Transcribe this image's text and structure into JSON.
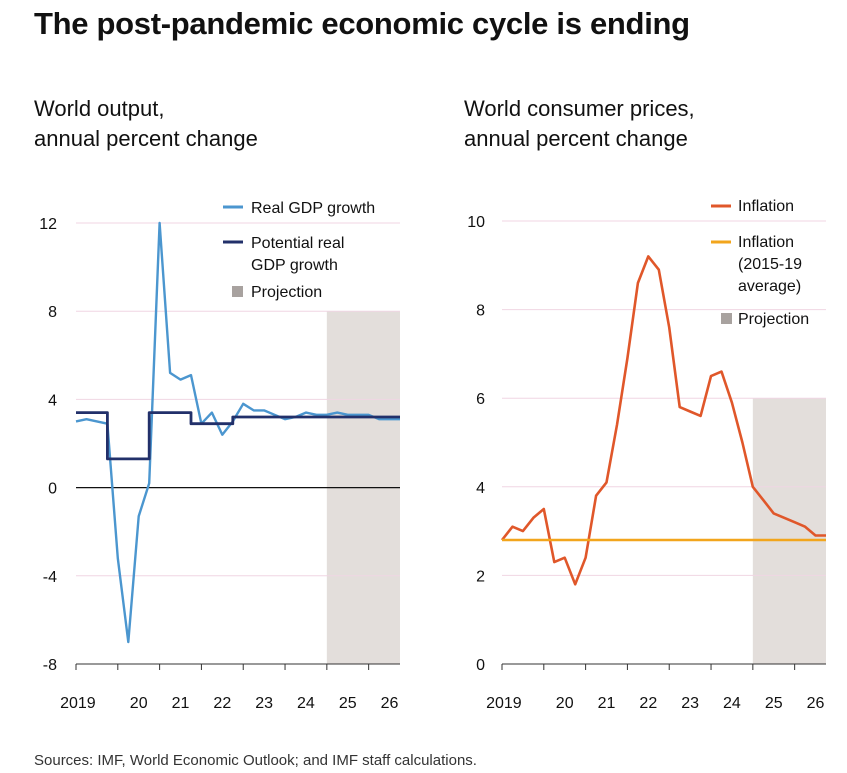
{
  "title": "The post-pandemic economic cycle is ending",
  "source": "Sources: IMF, World Economic Outlook; and IMF staff calculations.",
  "colors": {
    "gdp": "#4b96cf",
    "potential": "#22306a",
    "inflation": "#e0572a",
    "inflation_avg": "#f2a51c",
    "projection": "#e3dedb",
    "grid": "#f0d6e3",
    "zero": "#111111"
  },
  "chart_data": [
    {
      "type": "line",
      "title_lines": [
        "World output,",
        "annual percent change"
      ],
      "xlabel": "",
      "ylabel": "",
      "x_ticks": [
        "2019",
        "20",
        "21",
        "22",
        "23",
        "24",
        "25",
        "26"
      ],
      "x_range": [
        2019.0,
        2026.75
      ],
      "ylim": [
        -8,
        12
      ],
      "y_ticks": [
        "12",
        "8",
        "4",
        "0",
        "-4",
        "-8"
      ],
      "y_tick_values": [
        12,
        8,
        4,
        0,
        -4,
        -8
      ],
      "projection_start": 2025.0,
      "legend": [
        "Real GDP growth",
        "Potential real",
        "GDP growth",
        "Projection"
      ],
      "series": [
        {
          "name": "Real GDP growth",
          "x": [
            2019.0,
            2019.25,
            2019.5,
            2019.75,
            2020.0,
            2020.25,
            2020.5,
            2020.75,
            2021.0,
            2021.25,
            2021.5,
            2021.75,
            2022.0,
            2022.25,
            2022.5,
            2022.75,
            2023.0,
            2023.25,
            2023.5,
            2023.75,
            2024.0,
            2024.25,
            2024.5,
            2024.75,
            2025.0,
            2025.25,
            2025.5,
            2025.75,
            2026.0,
            2026.25,
            2026.5,
            2026.75
          ],
          "values": [
            3.0,
            3.1,
            3.0,
            2.9,
            -3.2,
            -7.0,
            -1.3,
            0.2,
            12.0,
            5.2,
            4.9,
            5.1,
            2.9,
            3.4,
            2.4,
            3.0,
            3.8,
            3.5,
            3.5,
            3.3,
            3.1,
            3.2,
            3.4,
            3.3,
            3.3,
            3.4,
            3.3,
            3.3,
            3.3,
            3.1,
            3.1,
            3.1
          ]
        },
        {
          "name": "Potential real GDP growth",
          "x": [
            2019.0,
            2019.75,
            2019.75,
            2020.75,
            2020.75,
            2021.75,
            2021.75,
            2022.75,
            2022.75,
            2026.75
          ],
          "values": [
            3.4,
            3.4,
            1.3,
            1.3,
            3.4,
            3.4,
            2.9,
            2.9,
            3.2,
            3.2
          ]
        }
      ]
    },
    {
      "type": "line",
      "title_lines": [
        "World consumer prices,",
        "annual percent change"
      ],
      "xlabel": "",
      "ylabel": "",
      "x_ticks": [
        "2019",
        "20",
        "21",
        "22",
        "23",
        "24",
        "25",
        "26"
      ],
      "x_range": [
        2019.0,
        2026.75
      ],
      "ylim": [
        0,
        10
      ],
      "y_ticks": [
        "10",
        "8",
        "6",
        "4",
        "2",
        "0"
      ],
      "y_tick_values": [
        10,
        8,
        6,
        4,
        2,
        0
      ],
      "projection_start": 2025.0,
      "legend": [
        "Inflation",
        "Inflation",
        "(2015-19",
        "average)",
        "Projection"
      ],
      "series": [
        {
          "name": "Inflation",
          "x": [
            2019.0,
            2019.25,
            2019.5,
            2019.75,
            2020.0,
            2020.25,
            2020.5,
            2020.75,
            2021.0,
            2021.25,
            2021.5,
            2021.75,
            2022.0,
            2022.25,
            2022.5,
            2022.75,
            2023.0,
            2023.25,
            2023.5,
            2023.75,
            2024.0,
            2024.25,
            2024.5,
            2024.75,
            2025.0,
            2025.25,
            2025.5,
            2025.75,
            2026.0,
            2026.25,
            2026.5,
            2026.75
          ],
          "values": [
            2.8,
            3.1,
            3.0,
            3.3,
            3.5,
            2.3,
            2.4,
            1.8,
            2.4,
            3.8,
            4.1,
            5.4,
            6.9,
            8.6,
            9.2,
            8.9,
            7.6,
            5.8,
            5.7,
            5.6,
            6.5,
            6.6,
            5.9,
            5.0,
            4.0,
            3.7,
            3.4,
            3.3,
            3.2,
            3.1,
            2.9,
            2.9
          ]
        },
        {
          "name": "Inflation (2015-19 average)",
          "x": [
            2019.0,
            2026.75
          ],
          "values": [
            2.8,
            2.8
          ]
        }
      ]
    }
  ]
}
